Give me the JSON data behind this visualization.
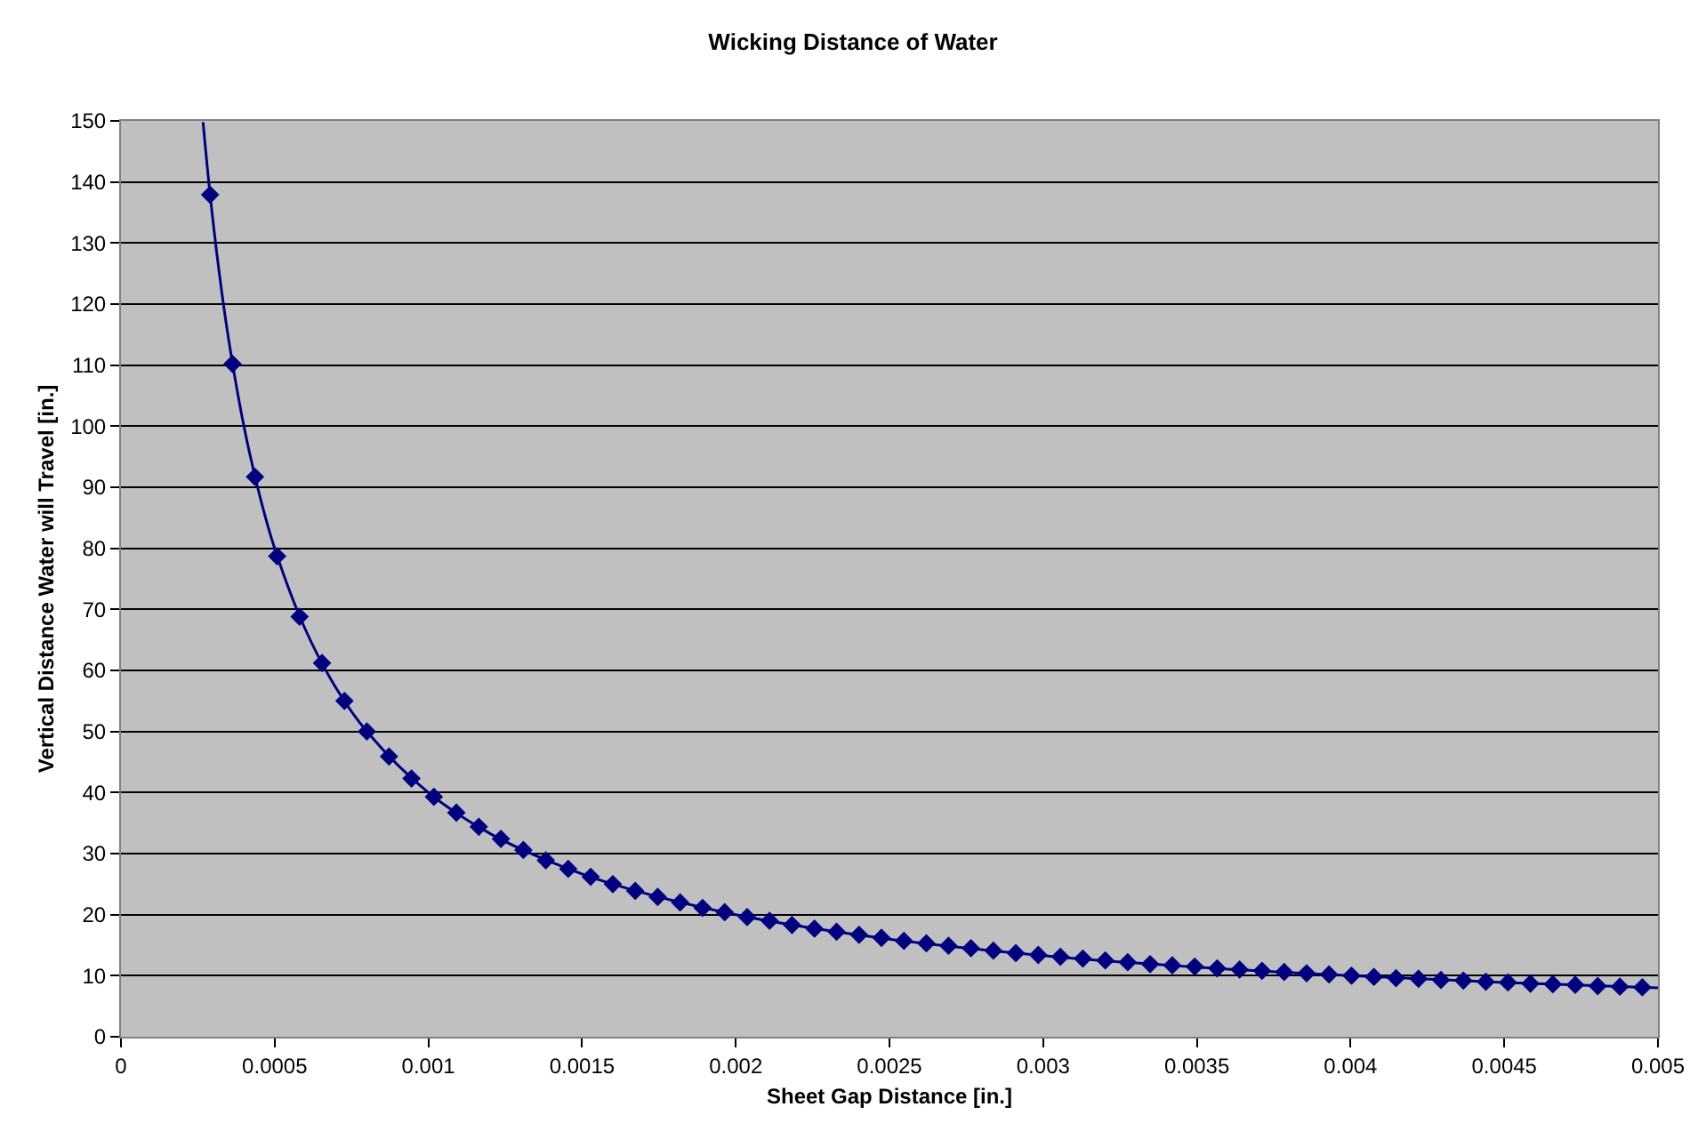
{
  "chart_data": {
    "type": "scatter",
    "title": "Wicking Distance of Water",
    "xlabel": "Sheet Gap Distance [in.]",
    "ylabel": "Vertical Distance Water will Travel [in.]",
    "xlim": [
      0,
      0.005
    ],
    "xticks": [
      0,
      0.0005,
      0.001,
      0.0015,
      0.002,
      0.0025,
      0.003,
      0.0035,
      0.004,
      0.0045,
      0.005
    ],
    "ylim": [
      0,
      150
    ],
    "yticks": [
      0,
      10,
      20,
      30,
      40,
      50,
      60,
      70,
      80,
      90,
      100,
      110,
      120,
      130,
      140,
      150
    ],
    "grid": "y",
    "series": [
      {
        "color": "#000080",
        "marker": "diamond",
        "x": [
          0.00029,
          0.000363,
          0.000436,
          0.000508,
          0.000581,
          0.000654,
          0.000727,
          0.0008,
          0.000872,
          0.000945,
          0.001018,
          0.001091,
          0.001164,
          0.001236,
          0.001309,
          0.001382,
          0.001455,
          0.001528,
          0.0016,
          0.001673,
          0.001746,
          0.001819,
          0.001892,
          0.001964,
          0.002037,
          0.00211,
          0.002183,
          0.002256,
          0.002328,
          0.002401,
          0.002474,
          0.002547,
          0.00262,
          0.002692,
          0.002765,
          0.002838,
          0.002911,
          0.002984,
          0.003056,
          0.003129,
          0.003202,
          0.003275,
          0.003348,
          0.00342,
          0.003493,
          0.003566,
          0.003639,
          0.003712,
          0.003784,
          0.003857,
          0.00393,
          0.004003,
          0.004076,
          0.004148,
          0.004221,
          0.004294,
          0.004367,
          0.00444,
          0.004512,
          0.004585,
          0.004658,
          0.004731,
          0.004804,
          0.004876,
          0.004949
        ],
        "values": [
          137.9,
          110.2,
          91.7,
          78.7,
          68.8,
          61.2,
          55.0,
          50.0,
          45.9,
          42.3,
          39.3,
          36.7,
          34.4,
          32.4,
          30.6,
          28.9,
          27.5,
          26.2,
          25.0,
          23.9,
          22.9,
          22.0,
          21.1,
          20.4,
          19.6,
          19.0,
          18.3,
          17.7,
          17.2,
          16.7,
          16.2,
          15.7,
          15.3,
          14.9,
          14.5,
          14.1,
          13.7,
          13.4,
          13.1,
          12.8,
          12.5,
          12.2,
          11.9,
          11.7,
          11.5,
          11.2,
          11.0,
          10.8,
          10.6,
          10.4,
          10.2,
          10.0,
          9.8,
          9.6,
          9.5,
          9.3,
          9.2,
          9.0,
          8.9,
          8.7,
          8.6,
          8.5,
          8.3,
          8.2,
          8.1
        ]
      },
      {
        "type": "line",
        "color": "#000080",
        "marker": "none",
        "line_style": "solid",
        "x": [
          0.000267,
          0.00029,
          0.00032,
          0.00035,
          0.0004,
          0.00045,
          0.0005,
          0.0006,
          0.0007,
          0.0008,
          0.001,
          0.0012,
          0.0014,
          0.0016,
          0.002,
          0.0025,
          0.003,
          0.0035,
          0.004,
          0.0045,
          0.005
        ],
        "values": [
          149.8,
          137.9,
          125.0,
          114.3,
          100.0,
          88.9,
          80.0,
          66.7,
          57.1,
          50.0,
          40.0,
          33.3,
          28.6,
          25.0,
          20.0,
          16.0,
          13.3,
          11.4,
          10.0,
          8.9,
          8.0
        ]
      }
    ]
  }
}
